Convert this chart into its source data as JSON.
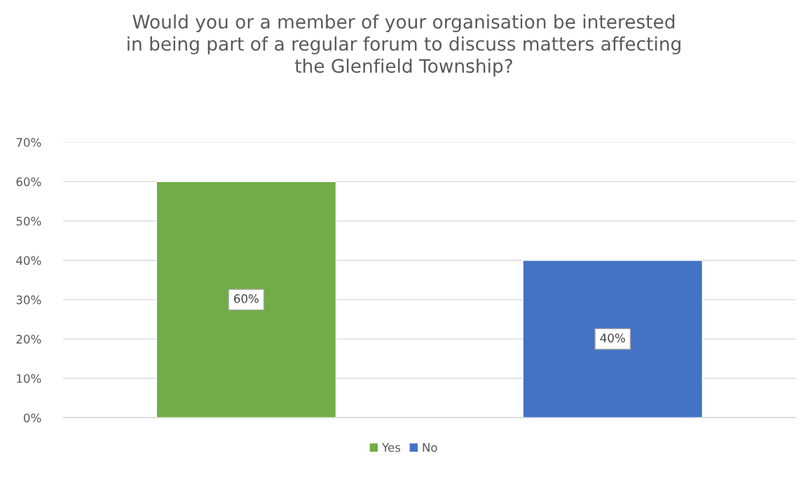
{
  "chart_data": {
    "type": "bar",
    "title": "Would you or a member of your organisation be interested\nin being part of a regular forum to discuss matters affecting\nthe Glenfield Township?",
    "categories": [
      null,
      null
    ],
    "series": [
      {
        "name": "Yes",
        "color": "#70ad47",
        "values": [
          60,
          null
        ],
        "value_labels": [
          "60%",
          null
        ]
      },
      {
        "name": "No",
        "color": "#4472c4",
        "values": [
          null,
          40
        ],
        "value_labels": [
          null,
          "40%"
        ]
      }
    ],
    "ylim": [
      0,
      70
    ],
    "yticks": [
      {
        "value": 0,
        "label": "0%"
      },
      {
        "value": 10,
        "label": "10%"
      },
      {
        "value": 20,
        "label": "20%"
      },
      {
        "value": 30,
        "label": "30%"
      },
      {
        "value": 40,
        "label": "40%"
      },
      {
        "value": 50,
        "label": "50%"
      },
      {
        "value": 60,
        "label": "60%"
      },
      {
        "value": 70,
        "label": "70%"
      }
    ],
    "grid": "y",
    "legend": "bottom",
    "tick_labels": "y"
  }
}
